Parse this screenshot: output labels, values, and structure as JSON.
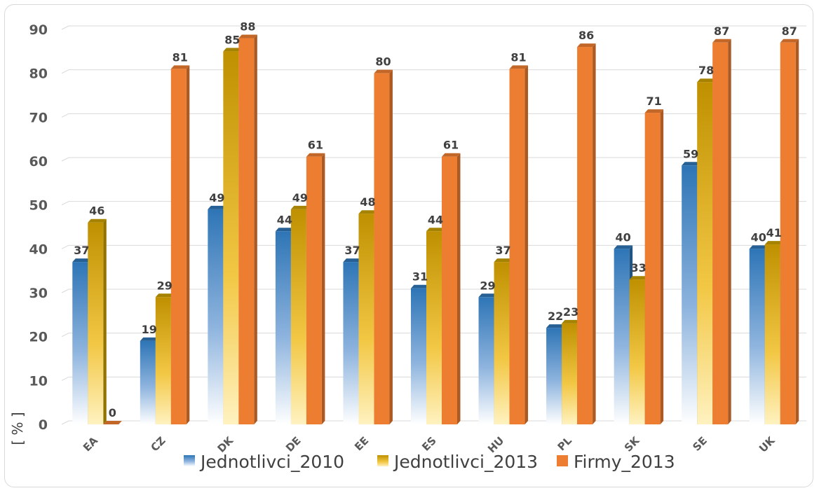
{
  "chart_data": {
    "type": "bar",
    "categories": [
      "EA",
      "CZ",
      "DK",
      "DE",
      "EE",
      "ES",
      "HU",
      "PL",
      "SK",
      "SE",
      "UK"
    ],
    "series": [
      {
        "name": "Jednotlivci_2010",
        "values": [
          37,
          19,
          49,
          44,
          37,
          31,
          29,
          22,
          40,
          59,
          40
        ],
        "labels": [
          "37",
          "19",
          "49",
          "44",
          "37",
          "31",
          "29",
          "22",
          "40",
          "59",
          "40"
        ],
        "color": "#2e75b6"
      },
      {
        "name": "Jednotlivci_2013",
        "values": [
          46,
          29,
          85,
          49,
          48,
          44,
          37,
          23,
          33,
          78,
          41
        ],
        "labels": [
          "46",
          "29",
          "85",
          "49",
          "48",
          "44",
          "37",
          "23",
          "33",
          "78",
          "41"
        ],
        "color": "#c9a000"
      },
      {
        "name": "Firmy_2013",
        "values": [
          0,
          81,
          88,
          61,
          80,
          61,
          81,
          86,
          71,
          87,
          87
        ],
        "labels": [
          "0",
          "81",
          "88",
          "61",
          "80",
          "61",
          "81",
          "86",
          "71",
          "87",
          "87"
        ],
        "color": "#ed7d31"
      }
    ],
    "ylabel": "[ % ]",
    "yticks": [
      "0",
      "10",
      "20",
      "30",
      "40",
      "50",
      "60",
      "70",
      "80",
      "90"
    ],
    "ylim": [
      0,
      90
    ],
    "grid": true,
    "legend": "bottom"
  }
}
